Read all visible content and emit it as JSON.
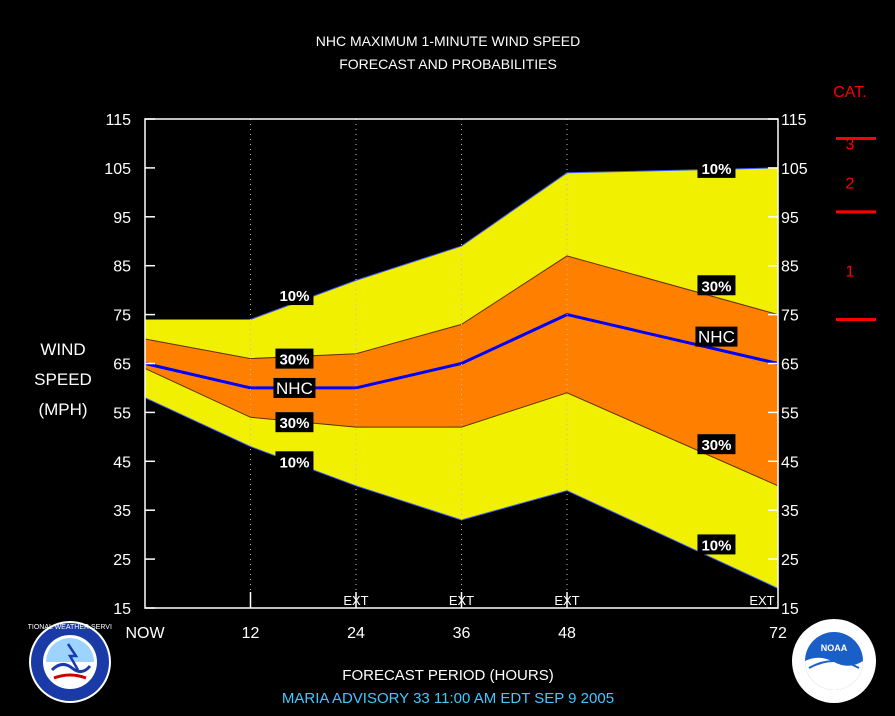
{
  "chart_data": {
    "type": "area",
    "title": [
      "NHC MAXIMUM 1-MINUTE WIND SPEED",
      "FORECAST AND PROBABILITIES"
    ],
    "ylabel": [
      "WIND",
      "SPEED",
      "(MPH)"
    ],
    "xlabel": "FORECAST PERIOD (HOURS)",
    "footer": "MARIA    ADVISORY  33 11:00  AM  EDT  SEP  9  2005",
    "ylim": [
      15,
      115
    ],
    "yticks": [
      15,
      25,
      35,
      45,
      55,
      65,
      75,
      85,
      95,
      105,
      115
    ],
    "xlim": [
      0,
      72
    ],
    "xticks": [
      {
        "x": 0,
        "label": "NOW"
      },
      {
        "x": 12,
        "label": "12"
      },
      {
        "x": 24,
        "label": "24"
      },
      {
        "x": 36,
        "label": "36"
      },
      {
        "x": 48,
        "label": "48"
      },
      {
        "x": 72,
        "label": "72"
      }
    ],
    "ext_labels": [
      {
        "x": 24,
        "label": "EXT"
      },
      {
        "x": 36,
        "label": "EXT"
      },
      {
        "x": 48,
        "label": "EXT"
      },
      {
        "x": 72,
        "label": "EXT"
      }
    ],
    "x": [
      0,
      12,
      24,
      36,
      48,
      72
    ],
    "series": [
      {
        "name": "10%",
        "role": "upper10",
        "values": [
          74,
          74,
          82,
          89,
          104,
          105
        ]
      },
      {
        "name": "30%",
        "role": "upper30",
        "values": [
          70,
          66,
          67,
          73,
          87,
          75
        ]
      },
      {
        "name": "NHC",
        "role": "nhc",
        "values": [
          65,
          60,
          60,
          65,
          75,
          65
        ]
      },
      {
        "name": "30%",
        "role": "lower30",
        "values": [
          64,
          54,
          52,
          52,
          59,
          40
        ]
      },
      {
        "name": "10%",
        "role": "lower10",
        "values": [
          58,
          48,
          40,
          33,
          39,
          19
        ]
      }
    ],
    "annotations": [
      {
        "text": "10%",
        "x": 17,
        "y": 79
      },
      {
        "text": "30%",
        "x": 17,
        "y": 66
      },
      {
        "text": "NHC",
        "x": 17,
        "y": 60
      },
      {
        "text": "30%",
        "x": 17,
        "y": 53
      },
      {
        "text": "10%",
        "x": 17,
        "y": 45
      },
      {
        "text": "10%",
        "x": 65,
        "y": 105
      },
      {
        "text": "30%",
        "x": 65,
        "y": 81
      },
      {
        "text": "NHC",
        "x": 65,
        "y": 70.5
      },
      {
        "text": "30%",
        "x": 65,
        "y": 48.5
      },
      {
        "text": "10%",
        "x": 65,
        "y": 28
      }
    ],
    "categories_scale": {
      "title": "CAT.",
      "labels": [
        {
          "text": "3",
          "y": 110
        },
        {
          "text": "2",
          "y": 102
        },
        {
          "text": "1",
          "y": 84
        }
      ],
      "thresholds": [
        111,
        96,
        74
      ]
    },
    "colors": {
      "band10": "#f0f000",
      "band30": "#ff8000",
      "nhc": "#0000ff",
      "category": "#ff0000",
      "footer": "#40c8ff"
    }
  },
  "logos": {
    "left": {
      "icon": "nws-logo",
      "text": "NATIONAL WEATHER SERVICE"
    },
    "right": {
      "icon": "noaa-logo",
      "text": "NOAA"
    }
  }
}
